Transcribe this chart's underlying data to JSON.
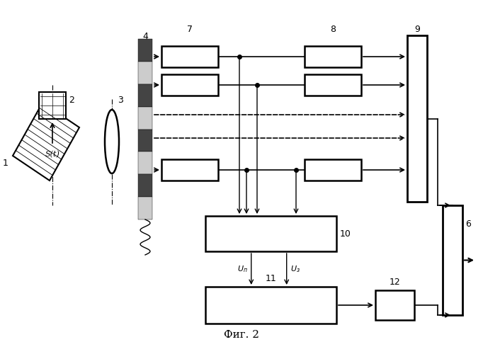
{
  "title": "Фиг. 2",
  "background": "#ffffff",
  "fig_w": 6.82,
  "fig_h": 5.0,
  "dpi": 100
}
